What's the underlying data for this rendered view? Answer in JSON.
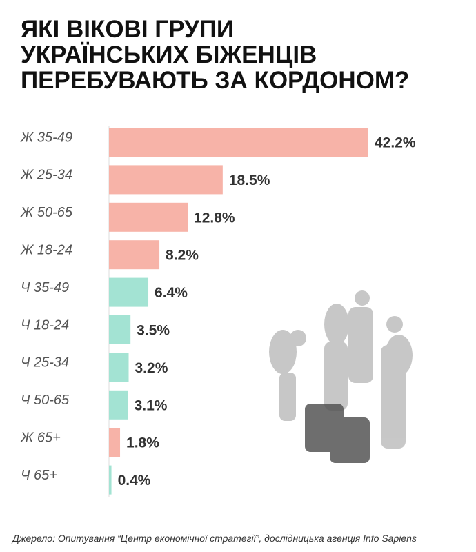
{
  "chart_data": {
    "type": "bar",
    "orientation": "horizontal",
    "title": [
      "ЯКІ ВІКОВІ ГРУПИ",
      "УКРАЇНСЬКИХ БІЖЕНЦІВ",
      "ПЕРЕБУВАЮТЬ ЗА КОРДОНОМ?"
    ],
    "categories": [
      "Ж 35-49",
      "Ж 25-34",
      "Ж 50-65",
      "Ж 18-24",
      "Ч 35-49",
      "Ч 18-24",
      "Ч 25-34",
      "Ч 50-65",
      "Ж 65+",
      "Ч 65+"
    ],
    "values": [
      42.2,
      18.5,
      12.8,
      8.2,
      6.4,
      3.5,
      3.2,
      3.1,
      1.8,
      0.4
    ],
    "value_labels": [
      "42.2%",
      "18.5%",
      "12.8%",
      "8.2%",
      "6.4%",
      "3.5%",
      "3.2%",
      "3.1%",
      "1.8%",
      "0.4%"
    ],
    "colors": [
      "#f7b3a8",
      "#f7b3a8",
      "#f7b3a8",
      "#f7b3a8",
      "#a3e3d3",
      "#a3e3d3",
      "#a3e3d3",
      "#a3e3d3",
      "#f7b3a8",
      "#a3e3d3"
    ],
    "source": "Джерело: Опитування “Центр економічної стратегії”, дослідницька агенція Info Sapiens"
  }
}
